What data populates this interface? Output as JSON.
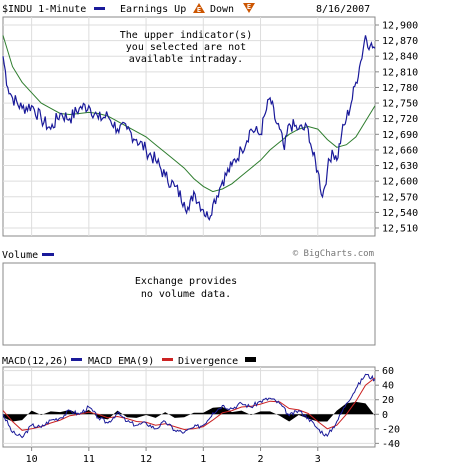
{
  "header": {
    "symbol_label": "$INDU 1-Minute",
    "earnings_label": "Earnings Up",
    "earnings_up_icon": "E",
    "down_label": "Down",
    "earnings_down_icon": "E",
    "date": "8/16/2007"
  },
  "price_panel": {
    "notice_lines": [
      "The upper indicator(s)",
      "you selected are not",
      "available intraday."
    ],
    "watermark": "© BigCharts.com"
  },
  "volume_panel": {
    "label": "Volume",
    "notice_lines": [
      "Exchange provides",
      "no volume data."
    ]
  },
  "macd_panel": {
    "macd_label": "MACD(12,26)",
    "ema_label": "MACD EMA(9)",
    "divergence_label": "Divergence"
  },
  "colors": {
    "price": "#1a1a9a",
    "moving_average": "#2e7d2e",
    "macd": "#1a1a9a",
    "ema": "#cc2222",
    "divergence": "#000000",
    "grid": "#dddddd",
    "earnings_icon": "#cc5500"
  },
  "chart_data": [
    {
      "type": "line",
      "series": [
        {
          "values": [
            {
              "x": "9:30",
              "y": 12840
            },
            {
              "x": "9:35",
              "y": 12780
            },
            {
              "x": "9:40",
              "y": 12760
            },
            {
              "x": "9:50",
              "y": 12740
            },
            {
              "x": "10:00",
              "y": 12745
            },
            {
              "x": "10:10",
              "y": 12720
            },
            {
              "x": "10:20",
              "y": 12700
            },
            {
              "x": "10:30",
              "y": 12730
            },
            {
              "x": "10:40",
              "y": 12720
            },
            {
              "x": "10:50",
              "y": 12740
            },
            {
              "x": "11:00",
              "y": 12745
            },
            {
              "x": "11:10",
              "y": 12720
            },
            {
              "x": "11:20",
              "y": 12725
            },
            {
              "x": "11:30",
              "y": 12700
            },
            {
              "x": "11:40",
              "y": 12700
            },
            {
              "x": "11:50",
              "y": 12680
            },
            {
              "x": "12:00",
              "y": 12660
            },
            {
              "x": "12:10",
              "y": 12640
            },
            {
              "x": "12:20",
              "y": 12610
            },
            {
              "x": "12:30",
              "y": 12590
            },
            {
              "x": "12:40",
              "y": 12560
            },
            {
              "x": "12:45",
              "y": 12545
            },
            {
              "x": "12:50",
              "y": 12580
            },
            {
              "x": "13:00",
              "y": 12545
            },
            {
              "x": "13:05",
              "y": 12530
            },
            {
              "x": "13:10",
              "y": 12555
            },
            {
              "x": "13:20",
              "y": 12600
            },
            {
              "x": "13:30",
              "y": 12630
            },
            {
              "x": "13:40",
              "y": 12660
            },
            {
              "x": "13:50",
              "y": 12700
            },
            {
              "x": "14:00",
              "y": 12690
            },
            {
              "x": "14:05",
              "y": 12730
            },
            {
              "x": "14:10",
              "y": 12760
            },
            {
              "x": "14:15",
              "y": 12720
            },
            {
              "x": "14:20",
              "y": 12700
            },
            {
              "x": "14:25",
              "y": 12660
            },
            {
              "x": "14:30",
              "y": 12710
            },
            {
              "x": "14:40",
              "y": 12700
            },
            {
              "x": "14:50",
              "y": 12700
            },
            {
              "x": "14:55",
              "y": 12650
            },
            {
              "x": "15:00",
              "y": 12620
            },
            {
              "x": "15:05",
              "y": 12570
            },
            {
              "x": "15:10",
              "y": 12620
            },
            {
              "x": "15:15",
              "y": 12660
            },
            {
              "x": "15:20",
              "y": 12640
            },
            {
              "x": "15:25",
              "y": 12690
            },
            {
              "x": "15:30",
              "y": 12720
            },
            {
              "x": "15:35",
              "y": 12750
            },
            {
              "x": "15:40",
              "y": 12790
            },
            {
              "x": "15:45",
              "y": 12830
            },
            {
              "x": "15:50",
              "y": 12880
            },
            {
              "x": "15:55",
              "y": 12860
            },
            {
              "x": "16:00",
              "y": 12855
            }
          ]
        },
        {
          "values": [
            {
              "x": "9:30",
              "y": 12880
            },
            {
              "x": "9:40",
              "y": 12820
            },
            {
              "x": "9:50",
              "y": 12790
            },
            {
              "x": "10:00",
              "y": 12770
            },
            {
              "x": "10:10",
              "y": 12750
            },
            {
              "x": "10:20",
              "y": 12740
            },
            {
              "x": "10:30",
              "y": 12730
            },
            {
              "x": "10:40",
              "y": 12728
            },
            {
              "x": "10:50",
              "y": 12730
            },
            {
              "x": "11:00",
              "y": 12732
            },
            {
              "x": "11:10",
              "y": 12730
            },
            {
              "x": "11:20",
              "y": 12725
            },
            {
              "x": "11:30",
              "y": 12715
            },
            {
              "x": "11:40",
              "y": 12705
            },
            {
              "x": "11:50",
              "y": 12695
            },
            {
              "x": "12:00",
              "y": 12685
            },
            {
              "x": "12:10",
              "y": 12670
            },
            {
              "x": "12:20",
              "y": 12655
            },
            {
              "x": "12:30",
              "y": 12640
            },
            {
              "x": "12:40",
              "y": 12625
            },
            {
              "x": "12:50",
              "y": 12605
            },
            {
              "x": "13:00",
              "y": 12590
            },
            {
              "x": "13:10",
              "y": 12580
            },
            {
              "x": "13:20",
              "y": 12585
            },
            {
              "x": "13:30",
              "y": 12595
            },
            {
              "x": "13:40",
              "y": 12610
            },
            {
              "x": "13:50",
              "y": 12625
            },
            {
              "x": "14:00",
              "y": 12640
            },
            {
              "x": "14:10",
              "y": 12660
            },
            {
              "x": "14:20",
              "y": 12675
            },
            {
              "x": "14:30",
              "y": 12690
            },
            {
              "x": "14:40",
              "y": 12700
            },
            {
              "x": "14:50",
              "y": 12705
            },
            {
              "x": "15:00",
              "y": 12700
            },
            {
              "x": "15:10",
              "y": 12680
            },
            {
              "x": "15:20",
              "y": 12665
            },
            {
              "x": "15:30",
              "y": 12670
            },
            {
              "x": "15:40",
              "y": 12685
            },
            {
              "x": "15:50",
              "y": 12715
            },
            {
              "x": "16:00",
              "y": 12745
            }
          ]
        }
      ],
      "y_ticks": [
        "12,900",
        "12,870",
        "12,840",
        "12,810",
        "12,780",
        "12,750",
        "12,720",
        "12,690",
        "12,660",
        "12,630",
        "12,600",
        "12,570",
        "12,540",
        "12,510"
      ],
      "ylim": [
        12510,
        12900
      ],
      "y_axis_side": "right",
      "grid": true
    },
    {
      "type": "line",
      "series": [
        {
          "name": "MACD(12,26)",
          "values": [
            {
              "x": "9:30",
              "y": 0
            },
            {
              "x": "9:40",
              "y": -25
            },
            {
              "x": "9:50",
              "y": -32
            },
            {
              "x": "10:00",
              "y": -15
            },
            {
              "x": "10:10",
              "y": -18
            },
            {
              "x": "10:20",
              "y": -8
            },
            {
              "x": "10:30",
              "y": -5
            },
            {
              "x": "10:40",
              "y": 5
            },
            {
              "x": "10:50",
              "y": 0
            },
            {
              "x": "11:00",
              "y": 10
            },
            {
              "x": "11:10",
              "y": -5
            },
            {
              "x": "11:20",
              "y": -12
            },
            {
              "x": "11:30",
              "y": 2
            },
            {
              "x": "11:40",
              "y": -10
            },
            {
              "x": "11:50",
              "y": -15
            },
            {
              "x": "12:00",
              "y": -12
            },
            {
              "x": "12:10",
              "y": -20
            },
            {
              "x": "12:20",
              "y": -10
            },
            {
              "x": "12:30",
              "y": -22
            },
            {
              "x": "12:40",
              "y": -25
            },
            {
              "x": "12:50",
              "y": -18
            },
            {
              "x": "13:00",
              "y": -15
            },
            {
              "x": "13:10",
              "y": 2
            },
            {
              "x": "13:20",
              "y": 12
            },
            {
              "x": "13:30",
              "y": 8
            },
            {
              "x": "13:40",
              "y": 15
            },
            {
              "x": "13:50",
              "y": 10
            },
            {
              "x": "14:00",
              "y": 18
            },
            {
              "x": "14:10",
              "y": 22
            },
            {
              "x": "14:20",
              "y": 15
            },
            {
              "x": "14:30",
              "y": -2
            },
            {
              "x": "14:40",
              "y": 5
            },
            {
              "x": "14:50",
              "y": -5
            },
            {
              "x": "15:00",
              "y": -20
            },
            {
              "x": "15:10",
              "y": -30
            },
            {
              "x": "15:20",
              "y": -10
            },
            {
              "x": "15:30",
              "y": 15
            },
            {
              "x": "15:40",
              "y": 35
            },
            {
              "x": "15:50",
              "y": 55
            },
            {
              "x": "16:00",
              "y": 48
            }
          ]
        },
        {
          "name": "MACD EMA(9)",
          "values": [
            {
              "x": "9:30",
              "y": 5
            },
            {
              "x": "9:40",
              "y": -10
            },
            {
              "x": "9:50",
              "y": -22
            },
            {
              "x": "10:00",
              "y": -20
            },
            {
              "x": "10:10",
              "y": -17
            },
            {
              "x": "10:20",
              "y": -12
            },
            {
              "x": "10:30",
              "y": -8
            },
            {
              "x": "10:40",
              "y": -2
            },
            {
              "x": "10:50",
              "y": 0
            },
            {
              "x": "11:00",
              "y": 3
            },
            {
              "x": "11:10",
              "y": 0
            },
            {
              "x": "11:20",
              "y": -5
            },
            {
              "x": "11:30",
              "y": -3
            },
            {
              "x": "11:40",
              "y": -6
            },
            {
              "x": "11:50",
              "y": -10
            },
            {
              "x": "12:00",
              "y": -11
            },
            {
              "x": "12:10",
              "y": -15
            },
            {
              "x": "12:20",
              "y": -13
            },
            {
              "x": "12:30",
              "y": -17
            },
            {
              "x": "12:40",
              "y": -21
            },
            {
              "x": "12:50",
              "y": -20
            },
            {
              "x": "13:00",
              "y": -17
            },
            {
              "x": "13:10",
              "y": -8
            },
            {
              "x": "13:20",
              "y": 2
            },
            {
              "x": "13:30",
              "y": 5
            },
            {
              "x": "13:40",
              "y": 10
            },
            {
              "x": "13:50",
              "y": 11
            },
            {
              "x": "14:00",
              "y": 14
            },
            {
              "x": "14:10",
              "y": 18
            },
            {
              "x": "14:20",
              "y": 17
            },
            {
              "x": "14:30",
              "y": 8
            },
            {
              "x": "14:40",
              "y": 6
            },
            {
              "x": "14:50",
              "y": 1
            },
            {
              "x": "15:00",
              "y": -10
            },
            {
              "x": "15:10",
              "y": -20
            },
            {
              "x": "15:20",
              "y": -15
            },
            {
              "x": "15:30",
              "y": 0
            },
            {
              "x": "15:40",
              "y": 18
            },
            {
              "x": "15:50",
              "y": 40
            },
            {
              "x": "16:00",
              "y": 50
            }
          ]
        },
        {
          "name": "Divergence",
          "values": [
            {
              "x": "9:30",
              "y": -4
            },
            {
              "x": "9:40",
              "y": -10
            },
            {
              "x": "9:50",
              "y": -8
            },
            {
              "x": "10:00",
              "y": 5
            },
            {
              "x": "10:10",
              "y": -1
            },
            {
              "x": "10:20",
              "y": 4
            },
            {
              "x": "10:30",
              "y": 3
            },
            {
              "x": "10:40",
              "y": 6
            },
            {
              "x": "10:50",
              "y": 0
            },
            {
              "x": "11:00",
              "y": 6
            },
            {
              "x": "11:10",
              "y": -5
            },
            {
              "x": "11:20",
              "y": -7
            },
            {
              "x": "11:30",
              "y": 5
            },
            {
              "x": "11:40",
              "y": -4
            },
            {
              "x": "11:50",
              "y": -5
            },
            {
              "x": "12:00",
              "y": -1
            },
            {
              "x": "12:10",
              "y": -5
            },
            {
              "x": "12:20",
              "y": 3
            },
            {
              "x": "12:30",
              "y": -5
            },
            {
              "x": "12:40",
              "y": -4
            },
            {
              "x": "12:50",
              "y": 2
            },
            {
              "x": "13:00",
              "y": 2
            },
            {
              "x": "13:10",
              "y": 9
            },
            {
              "x": "13:20",
              "y": 10
            },
            {
              "x": "13:30",
              "y": 3
            },
            {
              "x": "13:40",
              "y": 5
            },
            {
              "x": "13:50",
              "y": -1
            },
            {
              "x": "14:00",
              "y": 4
            },
            {
              "x": "14:10",
              "y": 4
            },
            {
              "x": "14:20",
              "y": -2
            },
            {
              "x": "14:30",
              "y": -10
            },
            {
              "x": "14:40",
              "y": -1
            },
            {
              "x": "14:50",
              "y": -6
            },
            {
              "x": "15:00",
              "y": -10
            },
            {
              "x": "15:10",
              "y": -10
            },
            {
              "x": "15:20",
              "y": 5
            },
            {
              "x": "15:30",
              "y": 15
            },
            {
              "x": "15:40",
              "y": 17
            },
            {
              "x": "15:50",
              "y": 15
            },
            {
              "x": "16:00",
              "y": -2
            }
          ]
        }
      ],
      "y_ticks": [
        "60",
        "40",
        "20",
        "0",
        "-20",
        "-40"
      ],
      "ylim": [
        -45,
        65
      ],
      "y_axis_side": "right",
      "x_tick_labels": [
        "10",
        "11",
        "12",
        "1",
        "2",
        "3"
      ],
      "grid": true
    }
  ]
}
